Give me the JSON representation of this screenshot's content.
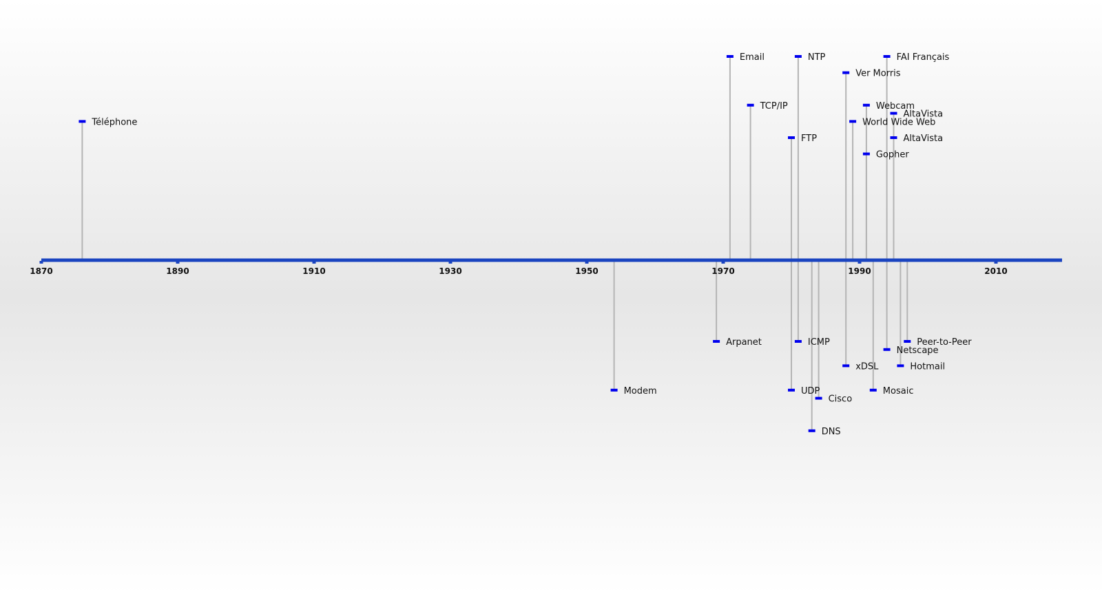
{
  "colors": {
    "axis": "#1a44c0",
    "marker": "#0000ee",
    "connector": "#b4b4b4",
    "text": "#111111"
  },
  "chart_data": {
    "type": "timeline",
    "xlim": [
      1870,
      2020
    ],
    "ticks": [
      "1870",
      "1890",
      "1910",
      "1930",
      "1950",
      "1970",
      "1990",
      "2010"
    ],
    "events": [
      {
        "label": "Téléphone",
        "year": 1876,
        "side": "above",
        "level": 5
      },
      {
        "label": "Email",
        "year": 1971,
        "side": "above",
        "level": 1
      },
      {
        "label": "TCP/IP",
        "year": 1974,
        "side": "above",
        "level": 4
      },
      {
        "label": "NTP",
        "year": 1981,
        "side": "above",
        "level": 1
      },
      {
        "label": "FTP",
        "year": 1980,
        "side": "above",
        "level": 6
      },
      {
        "label": "Ver Morris",
        "year": 1988,
        "side": "above",
        "level": 2
      },
      {
        "label": "World Wide Web",
        "year": 1989,
        "side": "above",
        "level": 5
      },
      {
        "label": "Webcam",
        "year": 1991,
        "side": "above",
        "level": 4
      },
      {
        "label": "Gopher",
        "year": 1991,
        "side": "above",
        "level": 7
      },
      {
        "label": "FAI Français",
        "year": 1994,
        "side": "above",
        "level": 1
      },
      {
        "label": "AltaVista",
        "year": 1995,
        "side": "above",
        "level": 4.5
      },
      {
        "label": "AltaVista",
        "year": 1995,
        "side": "above",
        "level": 6
      },
      {
        "label": "Modem",
        "year": 1954,
        "side": "below",
        "level": 5
      },
      {
        "label": "Arpanet",
        "year": 1969,
        "side": "below",
        "level": 2
      },
      {
        "label": "ICMP",
        "year": 1981,
        "side": "below",
        "level": 2
      },
      {
        "label": "UDP",
        "year": 1980,
        "side": "below",
        "level": 5
      },
      {
        "label": "Cisco",
        "year": 1984,
        "side": "below",
        "level": 5.5
      },
      {
        "label": "DNS",
        "year": 1983,
        "side": "below",
        "level": 7.5
      },
      {
        "label": "xDSL",
        "year": 1988,
        "side": "below",
        "level": 3.5
      },
      {
        "label": "Mosaic",
        "year": 1992,
        "side": "below",
        "level": 5
      },
      {
        "label": "Netscape",
        "year": 1994,
        "side": "below",
        "level": 2.5
      },
      {
        "label": "Hotmail",
        "year": 1996,
        "side": "below",
        "level": 3.5
      },
      {
        "label": "Peer-to-Peer",
        "year": 1997,
        "side": "below",
        "level": 2
      }
    ]
  }
}
